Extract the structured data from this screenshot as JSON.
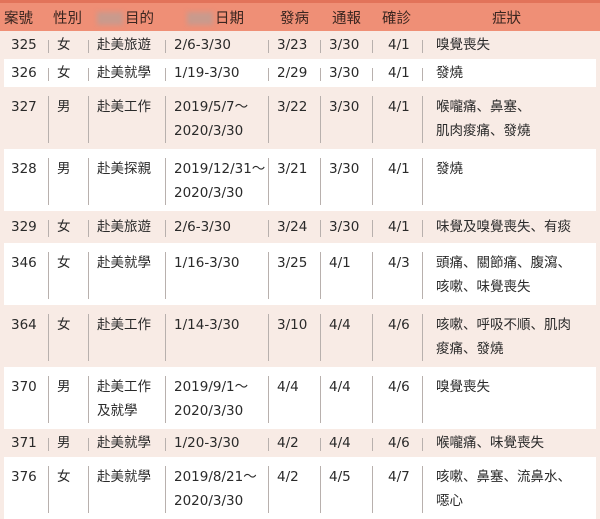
{
  "header": {
    "case_no": "案號",
    "sex": "性別",
    "purpose": "目的",
    "dates": "日期",
    "onset": "發病",
    "reported": "通報",
    "confirmed": "確診",
    "symptoms": "症狀"
  },
  "rows": [
    {
      "case": "325",
      "sex": "女",
      "purpose": [
        "赴美旅遊"
      ],
      "dates": [
        "2/6-3/30"
      ],
      "onset": "3/23",
      "reported": "3/30",
      "confirmed": "4/1",
      "symptoms": [
        "嗅覺喪失"
      ]
    },
    {
      "case": "326",
      "sex": "女",
      "purpose": [
        "赴美就學"
      ],
      "dates": [
        "1/19-3/30"
      ],
      "onset": "2/29",
      "reported": "3/30",
      "confirmed": "4/1",
      "symptoms": [
        "發燒"
      ]
    },
    {
      "case": "327",
      "sex": "男",
      "purpose": [
        "赴美工作"
      ],
      "dates": [
        "2019/5/7～",
        "2020/3/30"
      ],
      "onset": "3/22",
      "reported": "3/30",
      "confirmed": "4/1",
      "symptoms": [
        "喉嚨痛、鼻塞、",
        "肌肉痠痛、發燒"
      ]
    },
    {
      "case": "328",
      "sex": "男",
      "purpose": [
        "赴美探親"
      ],
      "dates": [
        "2019/12/31～",
        "2020/3/30"
      ],
      "onset": "3/21",
      "reported": "3/30",
      "confirmed": "4/1",
      "symptoms": [
        "發燒"
      ]
    },
    {
      "case": "329",
      "sex": "女",
      "purpose": [
        "赴美旅遊"
      ],
      "dates": [
        "2/6-3/30"
      ],
      "onset": "3/24",
      "reported": "3/30",
      "confirmed": "4/1",
      "symptoms": [
        "味覺及嗅覺喪失、有痰"
      ]
    },
    {
      "case": "346",
      "sex": "女",
      "purpose": [
        "赴美就學"
      ],
      "dates": [
        "1/16-3/30"
      ],
      "onset": "3/25",
      "reported": "4/1",
      "confirmed": "4/3",
      "symptoms": [
        "頭痛、關節痛、腹瀉、",
        "咳嗽、味覺喪失"
      ]
    },
    {
      "case": "364",
      "sex": "女",
      "purpose": [
        "赴美工作"
      ],
      "dates": [
        "1/14-3/30"
      ],
      "onset": "3/10",
      "reported": "4/4",
      "confirmed": "4/6",
      "symptoms": [
        "咳嗽、呼吸不順、肌肉",
        "痠痛、發燒"
      ]
    },
    {
      "case": "370",
      "sex": "男",
      "purpose": [
        "赴美工作",
        "及就學"
      ],
      "dates": [
        "2019/9/1～",
        "2020/3/30"
      ],
      "onset": "4/4",
      "reported": "4/4",
      "confirmed": "4/6",
      "symptoms": [
        "嗅覺喪失"
      ]
    },
    {
      "case": "371",
      "sex": "男",
      "purpose": [
        "赴美就學"
      ],
      "dates": [
        "1/20-3/30"
      ],
      "onset": "4/2",
      "reported": "4/4",
      "confirmed": "4/6",
      "symptoms": [
        "喉嚨痛、味覺喪失"
      ]
    },
    {
      "case": "376",
      "sex": "女",
      "purpose": [
        "赴美就學"
      ],
      "dates": [
        "2019/8/21～",
        "2020/3/30"
      ],
      "onset": "4/2",
      "reported": "4/5",
      "confirmed": "4/7",
      "symptoms": [
        "咳嗽、鼻塞、流鼻水、",
        "噁心"
      ]
    }
  ]
}
